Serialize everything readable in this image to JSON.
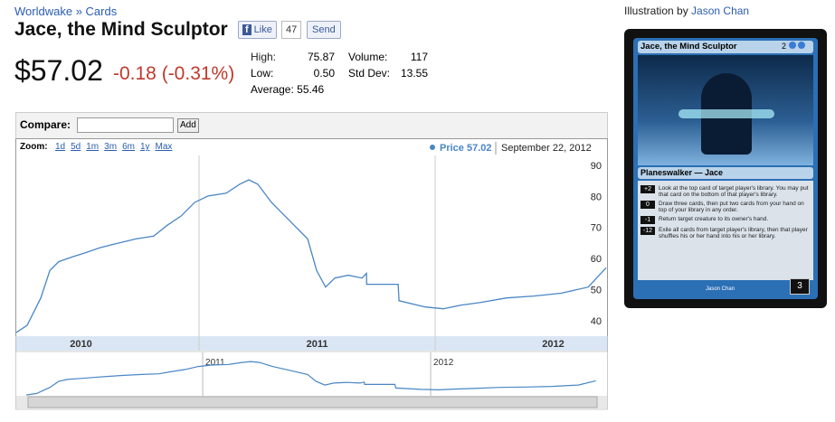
{
  "breadcrumb": [
    "Worldwake",
    "Cards"
  ],
  "breadcrumb_separator": "»",
  "title": "Jace, the Mind Sculptor",
  "like": {
    "label": "Like",
    "count": "47",
    "send": "Send"
  },
  "price": "$57.02",
  "change": "-0.18 (-0.31%)",
  "stats": [
    {
      "label": "High:",
      "value": "75.87"
    },
    {
      "label": "Low:",
      "value": "0.50"
    },
    {
      "label": "Average:",
      "value": "55.46"
    },
    {
      "label": "Volume:",
      "value": "117"
    },
    {
      "label": "Std Dev:",
      "value": "13.55"
    }
  ],
  "compare": {
    "label": "Compare:",
    "button": "Add"
  },
  "zoom": {
    "label": "Zoom:",
    "options": [
      "1d",
      "5d",
      "1m",
      "3m",
      "6m",
      "1y",
      "Max"
    ]
  },
  "chart_data": {
    "type": "line",
    "x": [
      2010.226,
      2010.272,
      2010.33,
      2010.368,
      2010.406,
      2010.464,
      2010.521,
      2010.579,
      2010.655,
      2010.732,
      2010.808,
      2010.866,
      2010.923,
      2010.981,
      2011.038,
      2011.115,
      2011.172,
      2011.211,
      2011.249,
      2011.307,
      2011.383,
      2011.46,
      2011.498,
      2011.536,
      2011.575,
      2011.632,
      2011.69,
      2011.709,
      2011.71,
      2011.843,
      2011.847,
      2011.958,
      2012.034,
      2012.111,
      2012.188,
      2012.303,
      2012.418,
      2012.533,
      2012.648,
      2012.724
    ],
    "series": [
      {
        "name": "Price",
        "color": "#4a86c5",
        "values": [
          36.2,
          38.5,
          47.3,
          56.1,
          59,
          60.5,
          61.9,
          63.4,
          64.9,
          66.3,
          67.2,
          70.7,
          73.6,
          78,
          80.1,
          81,
          83.9,
          85.3,
          83.9,
          78,
          72.2,
          66.3,
          56.1,
          50.8,
          53.7,
          54.6,
          53.7,
          55.2,
          51.7,
          51.7,
          46.4,
          44.4,
          43.8,
          45,
          45.8,
          47.3,
          47.9,
          48.8,
          50.8,
          57.02
        ]
      }
    ],
    "legend_value": "57.02",
    "legend_date": "September 22, 2012",
    "xlim": [
      2010.226,
      2012.724
    ],
    "ylim": [
      35,
      92
    ],
    "yticks": [
      40,
      50,
      60,
      70,
      80,
      90
    ],
    "xticks": [
      {
        "value": 2010.5,
        "label": "2010"
      },
      {
        "value": 2011.5,
        "label": "2011"
      },
      {
        "value": 2012.5,
        "label": "2012"
      }
    ],
    "xgrid": [
      2011,
      2012
    ],
    "grid": false,
    "navigator": {
      "xlim": [
        2010.234,
        2012.73
      ],
      "xticks": [
        2011,
        2012
      ]
    }
  },
  "illustration": {
    "prefix": "Illustration by",
    "artist": "Jason Chan"
  },
  "card": {
    "name": "Jace, the Mind Sculptor",
    "cost": "2",
    "type": "Planeswalker — Jace",
    "abilities": [
      {
        "cost": "+2",
        "text": "Look at the top card of target player's library. You may put that card on the bottom of that player's library."
      },
      {
        "cost": "0",
        "text": "Draw three cards, then put two cards from your hand on top of your library in any order."
      },
      {
        "cost": "-1",
        "text": "Return target creature to its owner's hand."
      },
      {
        "cost": "-12",
        "text": "Exile all cards from target player's library, then that player shuffles his or her hand into his or her library."
      }
    ],
    "loyalty": "3",
    "artist": "Jason Chan"
  }
}
